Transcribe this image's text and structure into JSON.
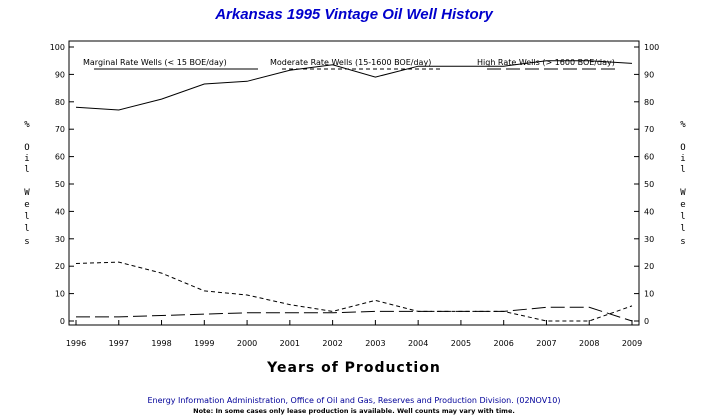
{
  "chart_data": {
    "type": "line",
    "title": "Arkansas 1995 Vintage Oil Well History",
    "xlabel": "Years of Production",
    "ylabel_chars": [
      "%",
      "O",
      "i",
      "l",
      "W",
      "e",
      "l",
      "l",
      "s"
    ],
    "ylim": [
      0,
      100
    ],
    "yticks": [
      0,
      10,
      20,
      30,
      40,
      50,
      60,
      70,
      80,
      90,
      100
    ],
    "categories": [
      "1996",
      "1997",
      "1998",
      "1999",
      "2000",
      "2001",
      "2002",
      "2003",
      "2004",
      "2005",
      "2006",
      "2007",
      "2008",
      "2009"
    ],
    "grid": false,
    "legend_position": "top",
    "series": [
      {
        "name": "Marginal Rate Wells (< 15 BOE/day)",
        "style": "solid",
        "values": [
          78,
          77,
          81,
          86.5,
          87.5,
          91.5,
          93.5,
          89,
          93,
          93,
          93,
          95,
          95,
          94
        ]
      },
      {
        "name": "Moderate Rate Wells (15-1600 BOE/day)",
        "style": "short-dash",
        "values": [
          21,
          21.5,
          17.5,
          11,
          9.5,
          6,
          3.5,
          7.5,
          3.5,
          3.5,
          3.5,
          0,
          0,
          5.5
        ]
      },
      {
        "name": "High Rate Wells (> 1600 BOE/day)",
        "style": "long-dash",
        "values": [
          1.5,
          1.5,
          2,
          2.5,
          3,
          3,
          3,
          3.5,
          3.5,
          3.5,
          3.5,
          5,
          5,
          0
        ]
      }
    ]
  },
  "footer": "Energy Information Administration, Office of Oil and Gas, Reserves and Production Division. (02NOV10)",
  "note": "Note: In some cases only lease production is available. Well counts may vary with time."
}
